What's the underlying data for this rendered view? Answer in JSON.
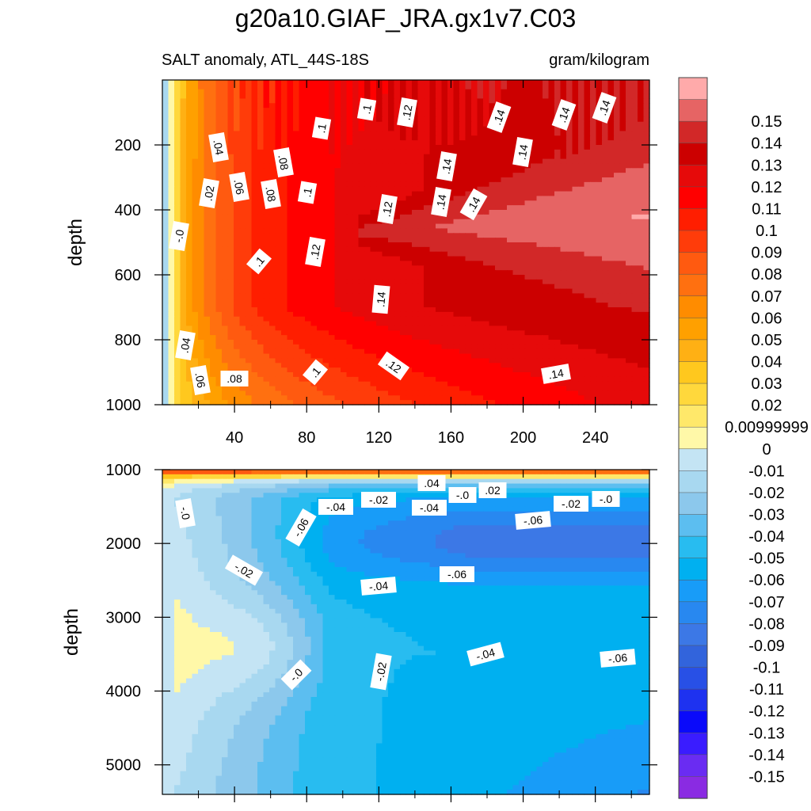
{
  "chart_data": {
    "type": "heatmap",
    "title": "g20a10.GIAF_JRA.gx1v7.C03",
    "subtitle_left": "SALT anomaly, ATL_44S-18S",
    "subtitle_right": "gram/kilogram",
    "x_tick_labels": [
      "40",
      "80",
      "120",
      "160",
      "200",
      "240"
    ],
    "x_range": [
      0,
      270
    ],
    "colorbar": {
      "colors": [
        "#8a2be2",
        "#6a2cf2",
        "#3a1cff",
        "#0a0afa",
        "#1e32f0",
        "#2850e6",
        "#3264dc",
        "#3c78e6",
        "#2888f0",
        "#189cf8",
        "#00b0f0",
        "#28bcf0",
        "#5cbef0",
        "#8cc8ec",
        "#a8d8f0",
        "#c4e4f4",
        "#fff8a8",
        "#ffe86a",
        "#ffd83c",
        "#ffc81e",
        "#ffb014",
        "#ffa000",
        "#ff8c00",
        "#ff7010",
        "#ff5a10",
        "#ff3c0a",
        "#ff1e00",
        "#ff0000",
        "#e60a0a",
        "#cc0000",
        "#d22828",
        "#e66464",
        "#ffaaaa"
      ],
      "labels": [
        "-0.15",
        "-0.14",
        "-0.13",
        "-0.12",
        "-0.11",
        "-0.1",
        "-0.09",
        "-0.08",
        "-0.07",
        "-0.06",
        "-0.05",
        "-0.04",
        "-0.03",
        "-0.02",
        "-0.01",
        "0",
        "0.00999999",
        "0.02",
        "0.03",
        "0.04",
        "0.05",
        "0.06",
        "0.07",
        "0.08",
        "0.09",
        "0.1",
        "0.11",
        "0.12",
        "0.13",
        "0.14",
        "0.15"
      ]
    },
    "panels": [
      {
        "name": "upper-ocean",
        "ylabel": "depth",
        "y_range": [
          0,
          1000
        ],
        "y_tick_labels": [
          "200",
          "400",
          "600",
          "800",
          "1000"
        ],
        "contour_labels": [
          ".04",
          ".06",
          ".08",
          ".1",
          ".12",
          ".14",
          ".02",
          "-.0"
        ]
      },
      {
        "name": "deep-ocean",
        "ylabel": "depth",
        "y_range": [
          1000,
          5400
        ],
        "y_tick_labels": [
          "1000",
          "2000",
          "3000",
          "4000",
          "5000"
        ],
        "contour_labels": [
          "-.0",
          "-.02",
          "-.04",
          "-.06",
          ".02",
          ".04"
        ]
      }
    ]
  }
}
